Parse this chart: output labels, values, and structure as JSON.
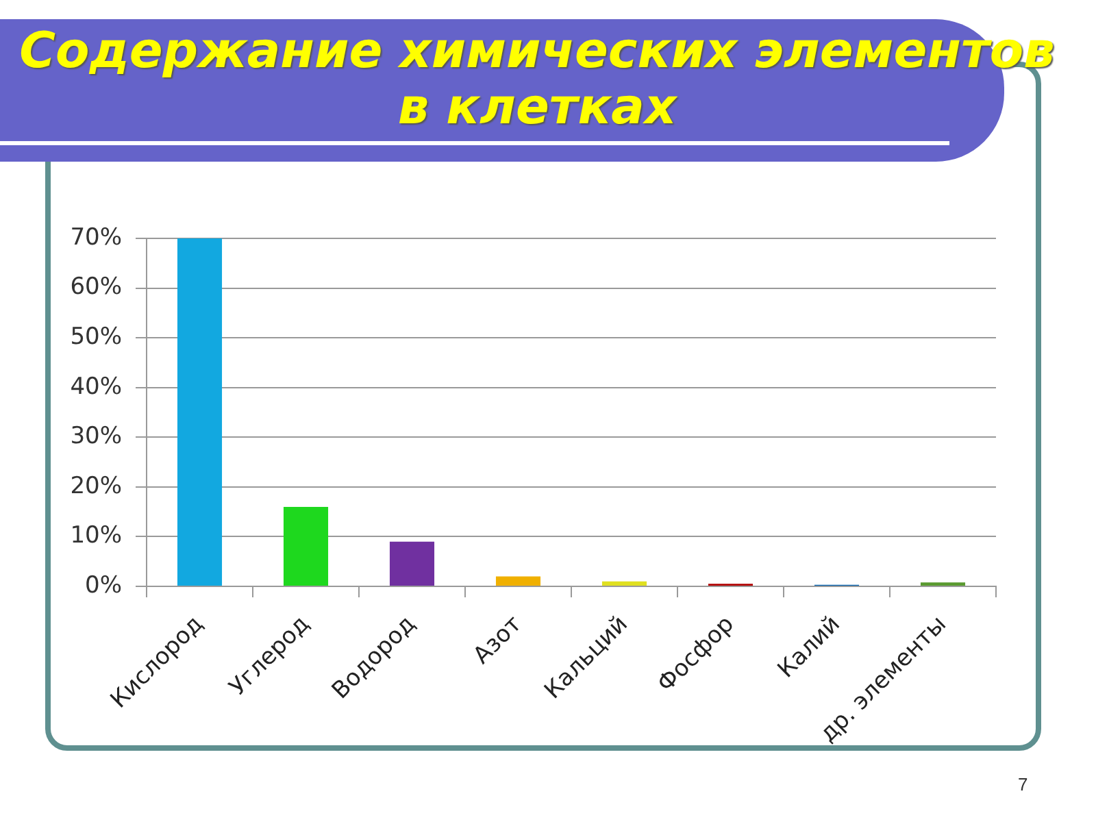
{
  "chart_data": {
    "type": "bar",
    "title": "Содержание химических элементов в клетках",
    "categories": [
      "Кислород",
      "Углерод",
      "Водород",
      "Азот",
      "Кальций",
      "Фосфор",
      "Калий",
      "др. элементы"
    ],
    "values": [
      70,
      16,
      9,
      2,
      1,
      0.5,
      0.3,
      0.8
    ],
    "colors": [
      "#12a8e0",
      "#1ed81e",
      "#7030a0",
      "#f0b000",
      "#e0e020",
      "#b00000",
      "#0060b0",
      "#5a9a30"
    ],
    "ylim": [
      0,
      70
    ],
    "yticks": [
      {
        "value": 0,
        "label": "0%"
      },
      {
        "value": 10,
        "label": "10%"
      },
      {
        "value": 20,
        "label": "20%"
      },
      {
        "value": 30,
        "label": "30%"
      },
      {
        "value": 40,
        "label": "40%"
      },
      {
        "value": 50,
        "label": "50%"
      },
      {
        "value": 60,
        "label": "60%"
      },
      {
        "value": 70,
        "label": "70%"
      }
    ],
    "grid": "y",
    "annotations": [
      "7"
    ]
  }
}
